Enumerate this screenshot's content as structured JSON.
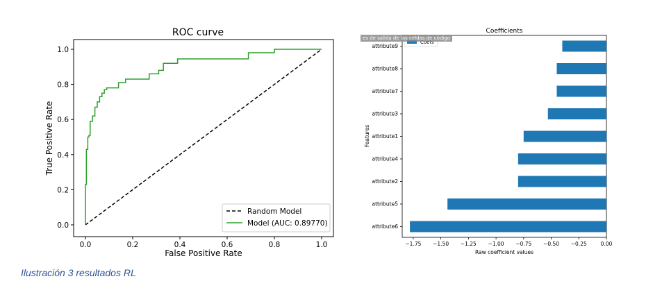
{
  "caption": "Ilustración 3 resultados RL",
  "overlay_text": "es de salida de las celdas de código",
  "colors": {
    "model_line": "#2ca02c",
    "random_line": "#000000",
    "bar": "#1f77b4",
    "caption": "#2e5496"
  },
  "chart_data": [
    {
      "type": "line",
      "title": "ROC curve",
      "xlabel": "False Positive Rate",
      "ylabel": "True Positive Rate",
      "xlim": [
        0,
        1
      ],
      "ylim": [
        0,
        1
      ],
      "xticks": [
        "0.0",
        "0.2",
        "0.4",
        "0.6",
        "0.8",
        "1.0"
      ],
      "yticks": [
        "0.0",
        "0.2",
        "0.4",
        "0.6",
        "0.8",
        "1.0"
      ],
      "grid": false,
      "legend_position": "lower-right",
      "series": [
        {
          "name": "Random Model",
          "style": "dashed",
          "color": "#000000",
          "x": [
            0,
            1
          ],
          "y": [
            0,
            1
          ]
        },
        {
          "name": "Model (AUC: 0.89770)",
          "style": "solid",
          "color": "#2ca02c",
          "x": [
            0,
            0,
            0.004,
            0.004,
            0.01,
            0.01,
            0.015,
            0.015,
            0.02,
            0.02,
            0.03,
            0.03,
            0.04,
            0.04,
            0.05,
            0.05,
            0.06,
            0.06,
            0.07,
            0.07,
            0.08,
            0.08,
            0.09,
            0.09,
            0.14,
            0.14,
            0.17,
            0.17,
            0.27,
            0.27,
            0.31,
            0.31,
            0.33,
            0.33,
            0.39,
            0.39,
            0.69,
            0.69,
            0.8,
            0.8,
            1.0
          ],
          "y": [
            0,
            0.23,
            0.23,
            0.43,
            0.43,
            0.5,
            0.5,
            0.51,
            0.51,
            0.59,
            0.59,
            0.62,
            0.62,
            0.67,
            0.67,
            0.7,
            0.7,
            0.73,
            0.73,
            0.75,
            0.75,
            0.77,
            0.77,
            0.78,
            0.78,
            0.81,
            0.81,
            0.83,
            0.83,
            0.86,
            0.86,
            0.88,
            0.88,
            0.92,
            0.92,
            0.945,
            0.945,
            0.98,
            0.98,
            1.0,
            1.0
          ]
        }
      ]
    },
    {
      "type": "bar",
      "orientation": "horizontal",
      "title": "Coefficients",
      "xlabel": "Raw coefficient values",
      "ylabel": "Features",
      "xlim": [
        -1.85,
        0
      ],
      "xticks": [
        "−1.75",
        "−1.50",
        "−1.25",
        "−1.00",
        "−0.75",
        "−0.50",
        "−0.25",
        "0.00"
      ],
      "xtick_values": [
        -1.75,
        -1.5,
        -1.25,
        -1.0,
        -0.75,
        -0.5,
        -0.25,
        0
      ],
      "legend": [
        "Coefs"
      ],
      "legend_position": "top-left",
      "categories": [
        "attribute6",
        "attribute5",
        "attribute2",
        "attribute4",
        "attribute1",
        "attribute3",
        "attribute7",
        "attribute8",
        "attribute9"
      ],
      "values": [
        -1.78,
        -1.44,
        -0.8,
        -0.8,
        -0.75,
        -0.53,
        -0.45,
        -0.45,
        -0.4
      ]
    }
  ]
}
